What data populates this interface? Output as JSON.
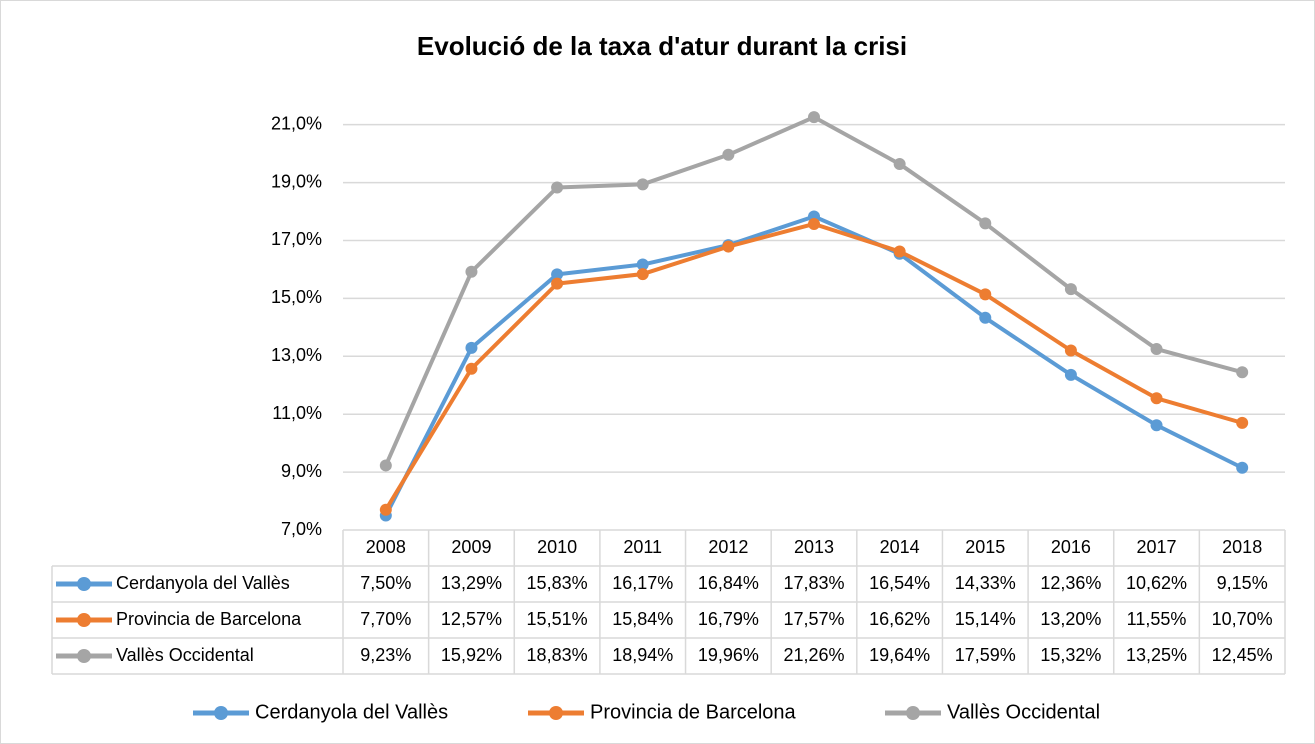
{
  "chart_data": {
    "type": "line",
    "title": "Evolució de la taxa d'atur durant la crisi",
    "categories": [
      "2008",
      "2009",
      "2010",
      "2011",
      "2012",
      "2013",
      "2014",
      "2015",
      "2016",
      "2017",
      "2018"
    ],
    "series": [
      {
        "name": "Cerdanyola del Vallès",
        "color": "#5b9bd5",
        "values": [
          7.5,
          13.29,
          15.83,
          16.17,
          16.84,
          17.83,
          16.54,
          14.33,
          12.36,
          10.62,
          9.15
        ],
        "value_labels": [
          "7,50%",
          "13,29%",
          "15,83%",
          "16,17%",
          "16,84%",
          "17,83%",
          "16,54%",
          "14,33%",
          "12,36%",
          "10,62%",
          "9,15%"
        ]
      },
      {
        "name": "Provincia de Barcelona",
        "color": "#ed7d31",
        "values": [
          7.7,
          12.57,
          15.51,
          15.84,
          16.79,
          17.57,
          16.62,
          15.14,
          13.2,
          11.55,
          10.7
        ],
        "value_labels": [
          "7,70%",
          "12,57%",
          "15,51%",
          "15,84%",
          "16,79%",
          "17,57%",
          "16,62%",
          "15,14%",
          "13,20%",
          "11,55%",
          "10,70%"
        ]
      },
      {
        "name": "Vallès Occidental",
        "color": "#a5a5a5",
        "values": [
          9.23,
          15.92,
          18.83,
          18.94,
          19.96,
          21.26,
          19.64,
          17.59,
          15.32,
          13.25,
          12.45
        ],
        "value_labels": [
          "9,23%",
          "15,92%",
          "18,83%",
          "18,94%",
          "19,96%",
          "21,26%",
          "19,64%",
          "17,59%",
          "15,32%",
          "13,25%",
          "12,45%"
        ]
      }
    ],
    "ylim": [
      7,
      21.3
    ],
    "yticks": [
      {
        "value": 7,
        "label": "7,0%"
      },
      {
        "value": 9,
        "label": "9,0%"
      },
      {
        "value": 11,
        "label": "11,0%"
      },
      {
        "value": 13,
        "label": "13,0%"
      },
      {
        "value": 15,
        "label": "15,0%"
      },
      {
        "value": 17,
        "label": "17,0%"
      },
      {
        "value": 19,
        "label": "19,0%"
      },
      {
        "value": 21,
        "label": "21,0%"
      }
    ],
    "grid": true
  }
}
